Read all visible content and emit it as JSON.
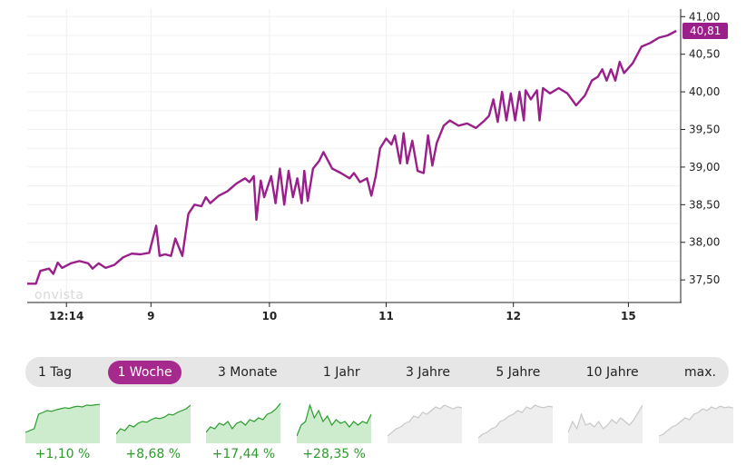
{
  "chart_data": {
    "type": "line",
    "series": [
      {
        "values": [
          [
            0,
            37.45
          ],
          [
            0.1,
            37.45
          ],
          [
            0.15,
            37.62
          ],
          [
            0.25,
            37.65
          ],
          [
            0.3,
            37.58
          ],
          [
            0.35,
            37.73
          ],
          [
            0.4,
            37.66
          ],
          [
            0.5,
            37.72
          ],
          [
            0.6,
            37.75
          ],
          [
            0.7,
            37.72
          ],
          [
            0.75,
            37.65
          ],
          [
            0.82,
            37.72
          ],
          [
            0.9,
            37.66
          ],
          [
            1.0,
            37.7
          ],
          [
            1.1,
            37.8
          ],
          [
            1.2,
            37.85
          ],
          [
            1.3,
            37.84
          ],
          [
            1.4,
            37.86
          ],
          [
            1.48,
            38.22
          ],
          [
            1.52,
            37.82
          ],
          [
            1.58,
            37.84
          ],
          [
            1.65,
            37.82
          ],
          [
            1.7,
            38.05
          ],
          [
            1.78,
            37.82
          ],
          [
            1.85,
            38.38
          ],
          [
            1.92,
            38.5
          ],
          [
            2.0,
            38.48
          ],
          [
            2.05,
            38.6
          ],
          [
            2.1,
            38.52
          ],
          [
            2.2,
            38.62
          ],
          [
            2.3,
            38.68
          ],
          [
            2.4,
            38.78
          ],
          [
            2.5,
            38.85
          ],
          [
            2.55,
            38.8
          ],
          [
            2.6,
            38.88
          ],
          [
            2.63,
            38.3
          ],
          [
            2.68,
            38.82
          ],
          [
            2.72,
            38.6
          ],
          [
            2.8,
            38.88
          ],
          [
            2.85,
            38.52
          ],
          [
            2.9,
            38.98
          ],
          [
            2.95,
            38.5
          ],
          [
            3.0,
            38.95
          ],
          [
            3.05,
            38.6
          ],
          [
            3.1,
            38.85
          ],
          [
            3.15,
            38.52
          ],
          [
            3.18,
            38.95
          ],
          [
            3.22,
            38.55
          ],
          [
            3.28,
            38.98
          ],
          [
            3.35,
            39.08
          ],
          [
            3.4,
            39.2
          ],
          [
            3.5,
            38.98
          ],
          [
            3.6,
            38.92
          ],
          [
            3.7,
            38.85
          ],
          [
            3.75,
            38.92
          ],
          [
            3.82,
            38.8
          ],
          [
            3.9,
            38.85
          ],
          [
            3.95,
            38.62
          ],
          [
            4.0,
            38.88
          ],
          [
            4.05,
            39.25
          ],
          [
            4.12,
            39.38
          ],
          [
            4.18,
            39.3
          ],
          [
            4.22,
            39.42
          ],
          [
            4.28,
            39.05
          ],
          [
            4.32,
            39.45
          ],
          [
            4.36,
            39.05
          ],
          [
            4.42,
            39.35
          ],
          [
            4.48,
            38.95
          ],
          [
            4.55,
            38.92
          ],
          [
            4.6,
            39.42
          ],
          [
            4.65,
            39.02
          ],
          [
            4.7,
            39.32
          ],
          [
            4.78,
            39.55
          ],
          [
            4.85,
            39.62
          ],
          [
            4.95,
            39.55
          ],
          [
            5.05,
            39.58
          ],
          [
            5.15,
            39.52
          ],
          [
            5.25,
            39.62
          ],
          [
            5.3,
            39.68
          ],
          [
            5.35,
            39.9
          ],
          [
            5.4,
            39.6
          ],
          [
            5.45,
            40.0
          ],
          [
            5.5,
            39.62
          ],
          [
            5.55,
            39.98
          ],
          [
            5.6,
            39.62
          ],
          [
            5.65,
            40.0
          ],
          [
            5.7,
            39.62
          ],
          [
            5.72,
            40.02
          ],
          [
            5.78,
            39.9
          ],
          [
            5.85,
            40.02
          ],
          [
            5.88,
            39.62
          ],
          [
            5.92,
            40.05
          ],
          [
            6.0,
            39.98
          ],
          [
            6.1,
            40.05
          ],
          [
            6.2,
            39.98
          ],
          [
            6.3,
            39.82
          ],
          [
            6.4,
            39.95
          ],
          [
            6.48,
            40.15
          ],
          [
            6.55,
            40.2
          ],
          [
            6.6,
            40.3
          ],
          [
            6.65,
            40.15
          ],
          [
            6.7,
            40.3
          ],
          [
            6.75,
            40.15
          ],
          [
            6.8,
            40.4
          ],
          [
            6.85,
            40.25
          ],
          [
            6.95,
            40.38
          ],
          [
            7.05,
            40.6
          ],
          [
            7.15,
            40.65
          ],
          [
            7.25,
            40.72
          ],
          [
            7.35,
            40.75
          ],
          [
            7.45,
            40.81
          ]
        ]
      }
    ],
    "ylim": [
      37.2,
      41.1
    ],
    "y_ticks": [
      "37,50",
      "38,00",
      "38,50",
      "39,00",
      "39,50",
      "40,00",
      "40,50",
      "41,00"
    ],
    "y_tick_values": [
      37.5,
      38.0,
      38.5,
      39.0,
      39.5,
      40.0,
      40.5,
      41.0
    ],
    "xlim": [
      0,
      7.5
    ],
    "x_ticks": [
      "12:14",
      "9",
      "10",
      "11",
      "12",
      "15"
    ],
    "x_tick_values": [
      0.45,
      1.42,
      2.78,
      4.12,
      5.58,
      6.9
    ],
    "last_price_label": "40,81",
    "last_price": 40.81,
    "watermark": "onvista",
    "grid": true,
    "line_color": "#9b1f8a"
  },
  "range_tabs": [
    {
      "label": "1 Tag",
      "active": false
    },
    {
      "label": "1 Woche",
      "active": true
    },
    {
      "label": "3 Monate",
      "active": false
    },
    {
      "label": "1 Jahr",
      "active": false
    },
    {
      "label": "3 Jahre",
      "active": false
    },
    {
      "label": "5 Jahre",
      "active": false
    },
    {
      "label": "10 Jahre",
      "active": false
    },
    {
      "label": "max.",
      "active": false
    }
  ],
  "thumbnails": [
    {
      "pct": "+1,10 %",
      "color": "#2a9d2a",
      "fill": "#cdebcd",
      "values": [
        0.2,
        0.25,
        0.3,
        0.7,
        0.75,
        0.8,
        0.78,
        0.82,
        0.85,
        0.88,
        0.86,
        0.9,
        0.92,
        0.9,
        0.95,
        0.94,
        0.96,
        0.97
      ]
    },
    {
      "pct": "+8,68 %",
      "color": "#2a9d2a",
      "fill": "#cdebcd",
      "values": [
        0.15,
        0.3,
        0.25,
        0.4,
        0.35,
        0.45,
        0.5,
        0.48,
        0.55,
        0.6,
        0.58,
        0.62,
        0.7,
        0.68,
        0.75,
        0.8,
        0.85,
        0.95
      ]
    },
    {
      "pct": "+17,44 %",
      "color": "#2a9d2a",
      "fill": "#cdebcd",
      "values": [
        0.2,
        0.35,
        0.3,
        0.45,
        0.4,
        0.5,
        0.3,
        0.45,
        0.5,
        0.4,
        0.55,
        0.5,
        0.6,
        0.55,
        0.7,
        0.75,
        0.85,
        1.0
      ]
    },
    {
      "pct": "+28,35 %",
      "color": "#2a9d2a",
      "fill": "#cdebcd",
      "values": [
        0.1,
        0.4,
        0.5,
        0.95,
        0.6,
        0.8,
        0.5,
        0.65,
        0.4,
        0.55,
        0.45,
        0.5,
        0.35,
        0.5,
        0.4,
        0.5,
        0.45,
        0.7
      ]
    },
    {
      "pct": "",
      "color": "#c8c8c8",
      "fill": "#eeeeee",
      "values": [
        0.1,
        0.2,
        0.3,
        0.35,
        0.45,
        0.5,
        0.65,
        0.6,
        0.75,
        0.7,
        0.8,
        0.9,
        0.85,
        0.95,
        0.9,
        0.85,
        0.9,
        0.88
      ]
    },
    {
      "pct": "",
      "color": "#c8c8c8",
      "fill": "#eeeeee",
      "values": [
        0.05,
        0.15,
        0.2,
        0.3,
        0.35,
        0.5,
        0.55,
        0.65,
        0.7,
        0.8,
        0.75,
        0.9,
        0.85,
        0.95,
        0.9,
        0.88,
        0.92,
        0.9
      ]
    },
    {
      "pct": "",
      "color": "#c8c8c8",
      "fill": "#eeeeee",
      "values": [
        0.2,
        0.5,
        0.3,
        0.7,
        0.4,
        0.45,
        0.35,
        0.5,
        0.3,
        0.4,
        0.55,
        0.45,
        0.6,
        0.5,
        0.4,
        0.55,
        0.75,
        0.95
      ]
    },
    {
      "pct": "",
      "color": "#c8c8c8",
      "fill": "#eeeeee",
      "values": [
        0.1,
        0.15,
        0.25,
        0.35,
        0.4,
        0.5,
        0.6,
        0.55,
        0.7,
        0.75,
        0.85,
        0.8,
        0.9,
        0.85,
        0.92,
        0.88,
        0.9,
        0.87
      ]
    }
  ]
}
